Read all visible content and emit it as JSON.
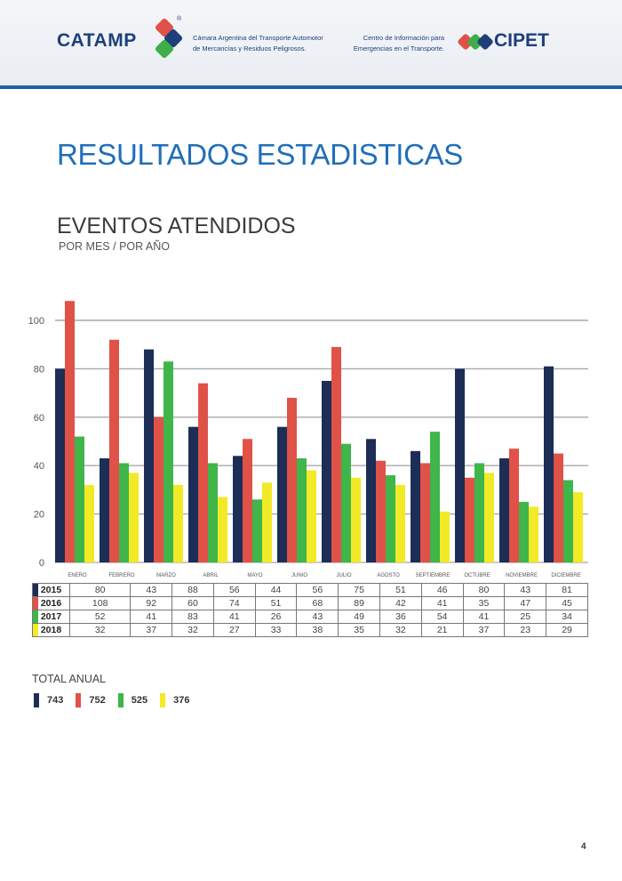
{
  "header": {
    "left_brand": "CATAMP",
    "left_org_line1": "Cámara Argentina del Transporte Automotor",
    "left_org_line2": "de Mercancías y Residuos Peligrosos.",
    "right_org_line1": "Centro de Información para",
    "right_org_line2": "Emergencias en el Transporte.",
    "right_brand": "CIPET",
    "registered_mark": "®",
    "colors": {
      "navy": "#1d3f7a",
      "red": "#e05248",
      "green": "#3fae49",
      "blue_rule": "#1e5fa6"
    }
  },
  "page": {
    "title": "RESULTADOS ESTADISTICAS",
    "subtitle": "EVENTOS ATENDIDOS",
    "subnote": "POR MES / POR AÑO",
    "total_label": "TOTAL ANUAL",
    "page_number": "4"
  },
  "chart_data": {
    "type": "bar",
    "categories": [
      "ENERO",
      "FEBRERO",
      "MARZO",
      "ABRIL",
      "MAYO",
      "JUNIO",
      "JULIO",
      "AGOSTO",
      "SEPTIEMBRE",
      "OCTUBRE",
      "NOVIEMBRE",
      "DICIEMBRE"
    ],
    "series": [
      {
        "name": "2015",
        "color": "#1c2d56",
        "values": [
          80,
          43,
          88,
          56,
          44,
          56,
          75,
          51,
          46,
          80,
          43,
          81
        ],
        "total": "743"
      },
      {
        "name": "2016",
        "color": "#e05248",
        "values": [
          108,
          92,
          60,
          74,
          51,
          68,
          89,
          42,
          41,
          35,
          47,
          45
        ],
        "total": "752"
      },
      {
        "name": "2017",
        "color": "#3fb54a",
        "values": [
          52,
          41,
          83,
          41,
          26,
          43,
          49,
          36,
          54,
          41,
          25,
          34
        ],
        "total": "525"
      },
      {
        "name": "2018",
        "color": "#f2ea26",
        "values": [
          32,
          37,
          32,
          27,
          33,
          38,
          35,
          32,
          21,
          37,
          23,
          29
        ],
        "total": "376"
      }
    ],
    "yticks": [
      "0",
      "20",
      "40",
      "60",
      "80",
      "100"
    ],
    "ylim": [
      0,
      110
    ],
    "grid": true,
    "legend": "table below chart"
  }
}
